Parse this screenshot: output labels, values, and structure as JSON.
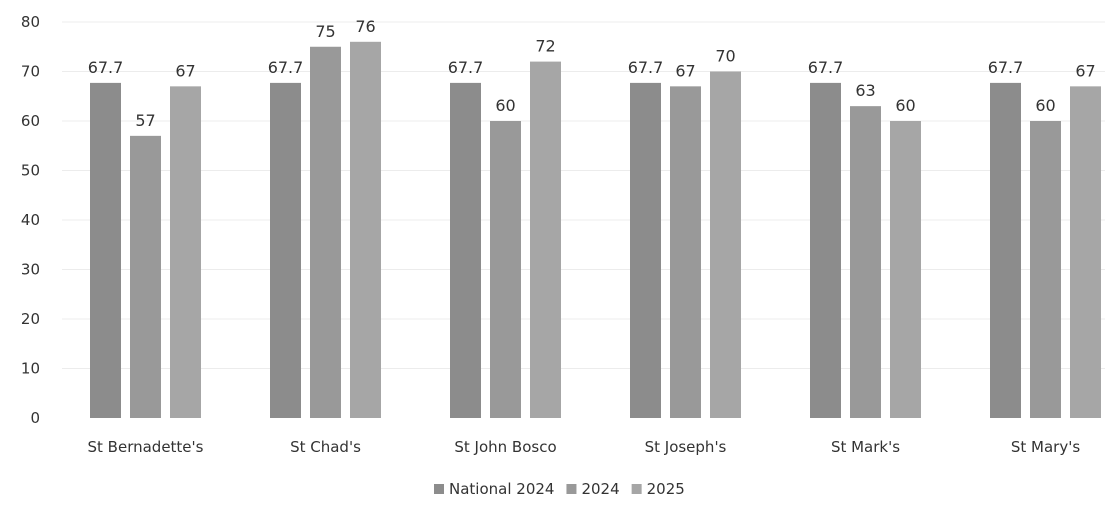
{
  "chart_data": {
    "type": "bar",
    "categories": [
      "St Bernadette's",
      "St Chad's",
      "St John Bosco",
      "St Joseph's",
      "St Mark's",
      "St Mary's"
    ],
    "series": [
      {
        "name": "National 2024",
        "values": [
          67.7,
          67.7,
          67.7,
          67.7,
          67.7,
          67.7
        ],
        "color": "#8c8c8c"
      },
      {
        "name": "2024",
        "values": [
          57,
          75,
          60,
          67,
          63,
          60
        ],
        "color": "#999999"
      },
      {
        "name": "2025",
        "values": [
          67,
          76,
          72,
          70,
          60,
          67
        ],
        "color": "#a6a6a6"
      }
    ],
    "ylim": [
      0,
      80
    ],
    "yticks": [
      0,
      10,
      20,
      30,
      40,
      50,
      60,
      70,
      80
    ],
    "grid": true,
    "legend_position": "bottom",
    "data_labels": true
  }
}
